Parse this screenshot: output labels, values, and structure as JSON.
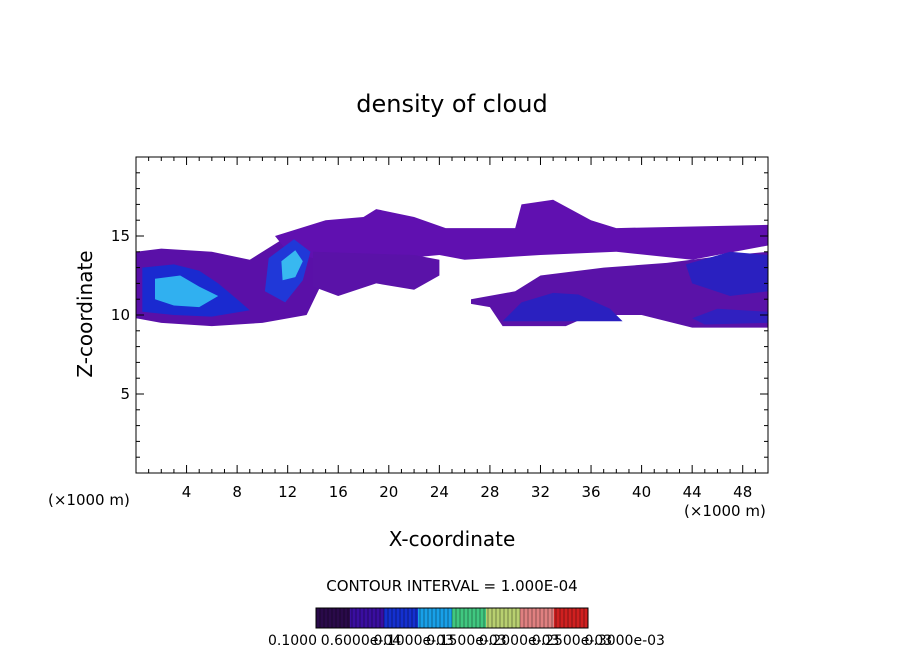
{
  "chart_data": {
    "type": "heatmap",
    "title": "density of cloud",
    "xlabel": "X-coordinate",
    "ylabel": "Z-coordinate",
    "x_unit": "(×1000 m)",
    "x_unit_right": "(×1000 m)",
    "xlim": [
      0,
      50
    ],
    "ylim": [
      0,
      20
    ],
    "x_ticks": [
      4,
      8,
      12,
      16,
      20,
      24,
      28,
      32,
      36,
      40,
      44,
      48
    ],
    "y_ticks": [
      5,
      10,
      15
    ],
    "contour_interval_text": "CONTOUR INTERVAL = 1.000E-04",
    "colorbar_labels": [
      "0.1000",
      "0.6000e-04",
      "0.1000e-03",
      "0.1500e-03",
      "0.2000e-03",
      "0.2500e-03",
      "0.3000e-03"
    ],
    "colorbar_colors": [
      "#2a0a4a",
      "#3a0ea0",
      "#1430d0",
      "#18a0e8",
      "#40c880",
      "#b8d070",
      "#e08080",
      "#d02020"
    ],
    "regions": [
      {
        "name": "left-cloud-mass",
        "color": "#5a10a8",
        "points": [
          [
            0,
            14
          ],
          [
            2,
            14.2
          ],
          [
            6,
            14
          ],
          [
            9,
            13.5
          ],
          [
            12,
            15
          ],
          [
            14,
            14
          ],
          [
            15,
            12.5
          ],
          [
            13.5,
            10
          ],
          [
            10,
            9.5
          ],
          [
            6,
            9.3
          ],
          [
            2,
            9.5
          ],
          [
            0,
            9.8
          ]
        ]
      },
      {
        "name": "upper-band",
        "color": "#6010b0",
        "points": [
          [
            11,
            15
          ],
          [
            15,
            16
          ],
          [
            18,
            16.2
          ],
          [
            19,
            16.7
          ],
          [
            22,
            16.2
          ],
          [
            24.5,
            15.5
          ],
          [
            28,
            15.5
          ],
          [
            30,
            15.5
          ],
          [
            30.5,
            17
          ],
          [
            33,
            17.3
          ],
          [
            36,
            16
          ],
          [
            38,
            15.5
          ],
          [
            50,
            15.7
          ],
          [
            50,
            14.4
          ],
          [
            44,
            13.5
          ],
          [
            38,
            14
          ],
          [
            32,
            13.8
          ],
          [
            26,
            13.5
          ],
          [
            24,
            13.8
          ],
          [
            20,
            13.5
          ],
          [
            14,
            13.6
          ],
          [
            12,
            14
          ]
        ]
      },
      {
        "name": "middle-band",
        "color": "#5a12a8",
        "points": [
          [
            14,
            14
          ],
          [
            22,
            13.8
          ],
          [
            24,
            13.5
          ],
          [
            24,
            12.5
          ],
          [
            22,
            11.6
          ],
          [
            19,
            12
          ],
          [
            16,
            11.2
          ],
          [
            14,
            11.8
          ]
        ]
      },
      {
        "name": "right-lower-band",
        "color": "#5a12a8",
        "points": [
          [
            26.5,
            11
          ],
          [
            30,
            11.5
          ],
          [
            32,
            12.5
          ],
          [
            37,
            13
          ],
          [
            42,
            13.3
          ],
          [
            46,
            13.7
          ],
          [
            50,
            14
          ],
          [
            50,
            9.2
          ],
          [
            44,
            9.2
          ],
          [
            40,
            10
          ],
          [
            36,
            10
          ],
          [
            34,
            9.3
          ],
          [
            29,
            9.3
          ],
          [
            28,
            10.5
          ],
          [
            26.5,
            10.7
          ]
        ]
      },
      {
        "name": "left-core",
        "color": "#1a2ad0",
        "points": [
          [
            0.5,
            13
          ],
          [
            3,
            13.2
          ],
          [
            5,
            12.8
          ],
          [
            6.5,
            12
          ],
          [
            8,
            11
          ],
          [
            9,
            10.3
          ],
          [
            6,
            9.9
          ],
          [
            3,
            10
          ],
          [
            0.5,
            10.2
          ]
        ]
      },
      {
        "name": "left-bright",
        "color": "#30b0f0",
        "points": [
          [
            1.5,
            12.3
          ],
          [
            3.5,
            12.5
          ],
          [
            5,
            11.8
          ],
          [
            6.5,
            11.2
          ],
          [
            5,
            10.5
          ],
          [
            3,
            10.6
          ],
          [
            1.5,
            11
          ]
        ]
      },
      {
        "name": "second-core",
        "color": "#2038d8",
        "points": [
          [
            10.5,
            13.6
          ],
          [
            12.5,
            14.8
          ],
          [
            13.8,
            14
          ],
          [
            13.2,
            12.2
          ],
          [
            11.8,
            10.8
          ],
          [
            10.2,
            11.5
          ]
        ]
      },
      {
        "name": "second-bright",
        "color": "#38b8f0",
        "points": [
          [
            11.5,
            13.4
          ],
          [
            12.6,
            14.1
          ],
          [
            13.2,
            13.4
          ],
          [
            12.6,
            12.4
          ],
          [
            11.6,
            12.2
          ]
        ]
      },
      {
        "name": "arch-cloud",
        "color": "#2a20c0",
        "points": [
          [
            29,
            9.6
          ],
          [
            30.5,
            10.8
          ],
          [
            33,
            11.4
          ],
          [
            35,
            11.3
          ],
          [
            37.5,
            10.4
          ],
          [
            38.5,
            9.6
          ]
        ]
      },
      {
        "name": "right-core",
        "color": "#2a20c0",
        "points": [
          [
            43.5,
            13.2
          ],
          [
            47,
            14
          ],
          [
            50,
            13.8
          ],
          [
            50,
            11.5
          ],
          [
            47,
            11.2
          ],
          [
            44,
            12
          ]
        ]
      },
      {
        "name": "right-lower-core",
        "color": "#3020c0",
        "points": [
          [
            44,
            9.8
          ],
          [
            46,
            10.4
          ],
          [
            50,
            10.2
          ],
          [
            50,
            9.5
          ],
          [
            45,
            9.4
          ]
        ]
      }
    ]
  }
}
